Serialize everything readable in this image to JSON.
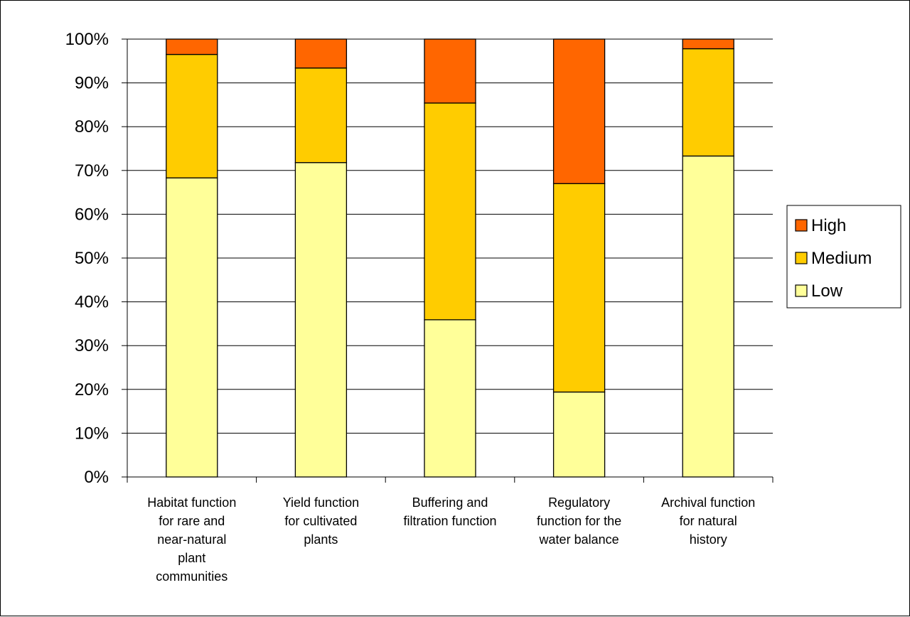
{
  "chart_data": {
    "type": "bar",
    "stacked": true,
    "percent": true,
    "categories": [
      [
        "Habitat function",
        "for rare and",
        "near-natural",
        "plant",
        "communities"
      ],
      [
        "Yield function",
        "for cultivated",
        "plants"
      ],
      [
        "Buffering and",
        "filtration function"
      ],
      [
        "Regulatory",
        "function for the",
        "water balance"
      ],
      [
        "Archival function",
        "for natural",
        "history"
      ]
    ],
    "series": [
      {
        "name": "Low",
        "color": "#FFFF99",
        "values": [
          68.3,
          71.8,
          35.9,
          19.4,
          73.3
        ]
      },
      {
        "name": "Medium",
        "color": "#FFCC00",
        "values": [
          28.2,
          21.6,
          49.5,
          47.6,
          24.5
        ]
      },
      {
        "name": "High",
        "color": "#FF6600",
        "values": [
          3.5,
          6.6,
          14.6,
          33.0,
          2.2
        ]
      }
    ],
    "yticks": [
      "0%",
      "10%",
      "20%",
      "30%",
      "40%",
      "50%",
      "60%",
      "70%",
      "80%",
      "90%",
      "100%"
    ],
    "ylim": [
      0,
      100
    ],
    "grid": true,
    "legend_position": "right",
    "legend_order": [
      "High",
      "Medium",
      "Low"
    ]
  }
}
